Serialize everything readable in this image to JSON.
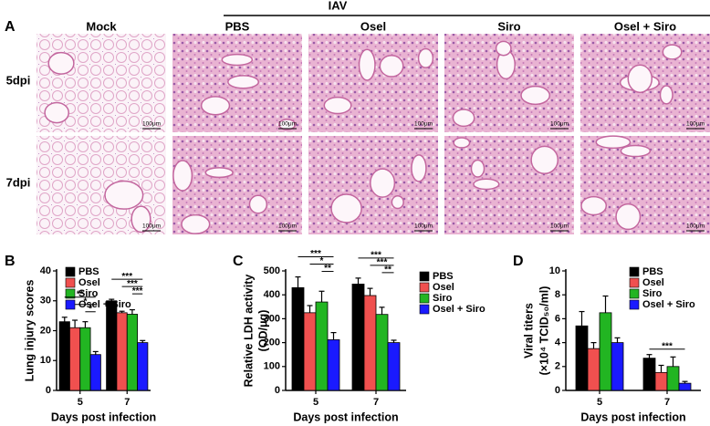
{
  "panel_a": {
    "label": "A",
    "group": "IAV",
    "columns": [
      "Mock",
      "PBS",
      "Osel",
      "Siro",
      "Osel + Siro"
    ],
    "rows": [
      "5dpi",
      "7dpi"
    ],
    "scale_bar": "100μm"
  },
  "chart_data": [
    {
      "type": "bar",
      "label": "B",
      "ylabel": [
        "Lung injury scores"
      ],
      "xlabel": "Days post infection",
      "categories": [
        "5",
        "7"
      ],
      "ylim": [
        0,
        40
      ],
      "yticks": [
        0,
        10,
        20,
        30,
        40
      ],
      "legend": "upper left",
      "series": [
        {
          "name": "PBS",
          "color": "#000000",
          "values": [
            23,
            30
          ],
          "errors": [
            1.5,
            0.5
          ]
        },
        {
          "name": "Osel",
          "color": "#f0504f",
          "values": [
            21,
            26
          ],
          "errors": [
            2.5,
            0.5
          ]
        },
        {
          "name": "Siro",
          "color": "#22b522",
          "values": [
            21,
            25.5
          ],
          "errors": [
            2,
            1.5
          ]
        },
        {
          "name": "Osel + Siro",
          "color": "#1a1aff",
          "values": [
            12,
            16
          ],
          "errors": [
            1,
            0.7
          ]
        }
      ],
      "annotations": [
        {
          "text": "**",
          "category": "5",
          "from": "PBS",
          "to": "Osel + Siro"
        },
        {
          "text": "*",
          "category": "5",
          "from": "Osel",
          "to": "Osel + Siro"
        },
        {
          "text": "*",
          "category": "5",
          "from": "Siro",
          "to": "Osel + Siro"
        },
        {
          "text": "***",
          "category": "7",
          "from": "PBS",
          "to": "Osel + Siro"
        },
        {
          "text": "***",
          "category": "7",
          "from": "Osel",
          "to": "Osel + Siro"
        },
        {
          "text": "***",
          "category": "7",
          "from": "Siro",
          "to": "Osel + Siro"
        }
      ]
    },
    {
      "type": "bar",
      "label": "C",
      "ylabel": [
        "Relative LDH activity",
        "(OD/μg)"
      ],
      "xlabel": "Days post infection",
      "categories": [
        "5",
        "7"
      ],
      "ylim": [
        0,
        500
      ],
      "yticks": [
        0,
        100,
        200,
        300,
        400,
        500
      ],
      "legend": "right",
      "series": [
        {
          "name": "PBS",
          "color": "#000000",
          "values": [
            430,
            445
          ],
          "errors": [
            45,
            25
          ]
        },
        {
          "name": "Osel",
          "color": "#f0504f",
          "values": [
            325,
            397
          ],
          "errors": [
            30,
            30
          ]
        },
        {
          "name": "Siro",
          "color": "#22b522",
          "values": [
            370,
            318
          ],
          "errors": [
            45,
            30
          ]
        },
        {
          "name": "Osel + Siro",
          "color": "#1a1aff",
          "values": [
            212,
            200
          ],
          "errors": [
            30,
            10
          ]
        }
      ],
      "annotations": [
        {
          "text": "***",
          "category": "5",
          "from": "PBS",
          "to": "Osel + Siro"
        },
        {
          "text": "*",
          "category": "5",
          "from": "Osel",
          "to": "Osel + Siro"
        },
        {
          "text": "**",
          "category": "5",
          "from": "Siro",
          "to": "Osel + Siro"
        },
        {
          "text": "***",
          "category": "7",
          "from": "PBS",
          "to": "Osel + Siro"
        },
        {
          "text": "***",
          "category": "7",
          "from": "Osel",
          "to": "Osel + Siro"
        },
        {
          "text": "**",
          "category": "7",
          "from": "Siro",
          "to": "Osel + Siro"
        }
      ]
    },
    {
      "type": "bar",
      "label": "D",
      "ylabel": [
        "Viral titers",
        "(×10⁴ TCID₅₀/ml)"
      ],
      "xlabel": "Days post infection",
      "categories": [
        "5",
        "7"
      ],
      "ylim": [
        0,
        10
      ],
      "yticks": [
        0,
        2,
        4,
        6,
        8,
        10
      ],
      "legend": "upper right",
      "series": [
        {
          "name": "PBS",
          "color": "#000000",
          "values": [
            5.4,
            2.7
          ],
          "errors": [
            1.2,
            0.3
          ]
        },
        {
          "name": "Osel",
          "color": "#f0504f",
          "values": [
            3.5,
            1.5
          ],
          "errors": [
            0.5,
            0.6
          ]
        },
        {
          "name": "Siro",
          "color": "#22b522",
          "values": [
            6.5,
            2.0
          ],
          "errors": [
            1.4,
            0.8
          ]
        },
        {
          "name": "Osel + Siro",
          "color": "#1a1aff",
          "values": [
            4.0,
            0.6
          ],
          "errors": [
            0.4,
            0.15
          ]
        }
      ],
      "annotations": [
        {
          "text": "***",
          "category": "7",
          "from": "PBS",
          "to": "Osel + Siro"
        }
      ]
    }
  ]
}
